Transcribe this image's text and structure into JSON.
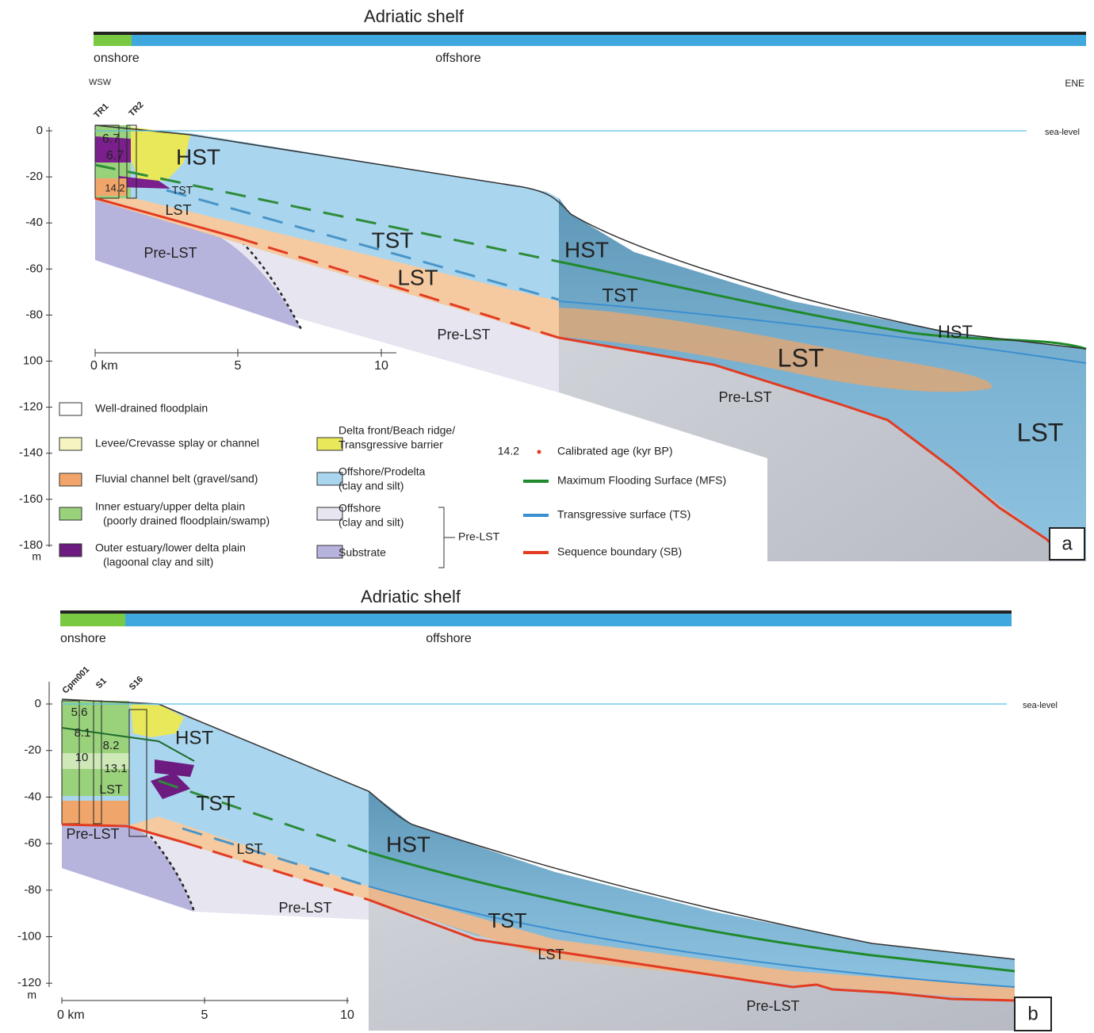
{
  "panel_a": {
    "title": "Adriatic shelf",
    "onshore": "onshore",
    "offshore": "offshore",
    "left_direction": "WSW",
    "right_direction": "ENE",
    "cores": [
      "TR1",
      "TR2"
    ],
    "sea_level": "sea-level",
    "depth_ticks": [
      "0",
      "-20",
      "-40",
      "-60",
      "-80",
      "100",
      "-120",
      "-140",
      "-160",
      "-180"
    ],
    "depth_unit": "m",
    "distance_ticks": [
      "0 km",
      "5",
      "10"
    ],
    "ages": [
      "6.7",
      "6.7",
      "14.2"
    ],
    "units": [
      "HST",
      "TST",
      "LST",
      "Pre-LST",
      "TST",
      "LST",
      "HST",
      "TST",
      "HST",
      "LST",
      "Pre-LST",
      "Pre-LST",
      "LST"
    ],
    "label": "a"
  },
  "legend": {
    "facies": [
      {
        "lines": [
          "Well-drained floodplain"
        ]
      },
      {
        "lines": [
          "Levee/Crevasse splay or channel"
        ]
      },
      {
        "lines": [
          "Fluvial channel belt (gravel/sand)"
        ]
      },
      {
        "lines": [
          "Inner estuary/upper delta plain",
          "(poorly drained floodplain/swamp)"
        ]
      },
      {
        "lines": [
          "Outer estuary/lower delta plain",
          "(lagoonal clay and silt)"
        ]
      },
      {
        "lines": [
          "Delta front/Beach ridge/",
          "Transgressive barrier"
        ]
      },
      {
        "lines": [
          "Offshore/Prodelta",
          "(clay and silt)"
        ]
      },
      {
        "lines": [
          "Offshore",
          "(clay and silt)"
        ]
      },
      {
        "lines": [
          "Substrate"
        ]
      }
    ],
    "pre_lst_bracket": "Pre-LST",
    "age_example": "14.2",
    "age_label": "Calibrated age (kyr BP)",
    "surfaces": [
      "Maximum Flooding Surface (MFS)",
      "Transgressive surface (TS)",
      "Sequence boundary (SB)"
    ]
  },
  "panel_b": {
    "title": "Adriatic shelf",
    "onshore": "onshore",
    "offshore": "offshore",
    "cores": [
      "Cpm001",
      "S1",
      "S16"
    ],
    "sea_level": "sea-level",
    "depth_ticks": [
      "0",
      "-20",
      "-40",
      "-60",
      "-80",
      "-100",
      "-120"
    ],
    "depth_unit": "m",
    "distance_ticks": [
      "0 km",
      "5",
      "10"
    ],
    "ages": [
      "5.6",
      "8.1",
      "8.2",
      "10",
      "13.1"
    ],
    "units": [
      "HST",
      "TST",
      "LST",
      "Pre-LST",
      "LST",
      "Pre-LST",
      "HST",
      "TST",
      "LST",
      "Pre-LST"
    ],
    "label": "b"
  }
}
